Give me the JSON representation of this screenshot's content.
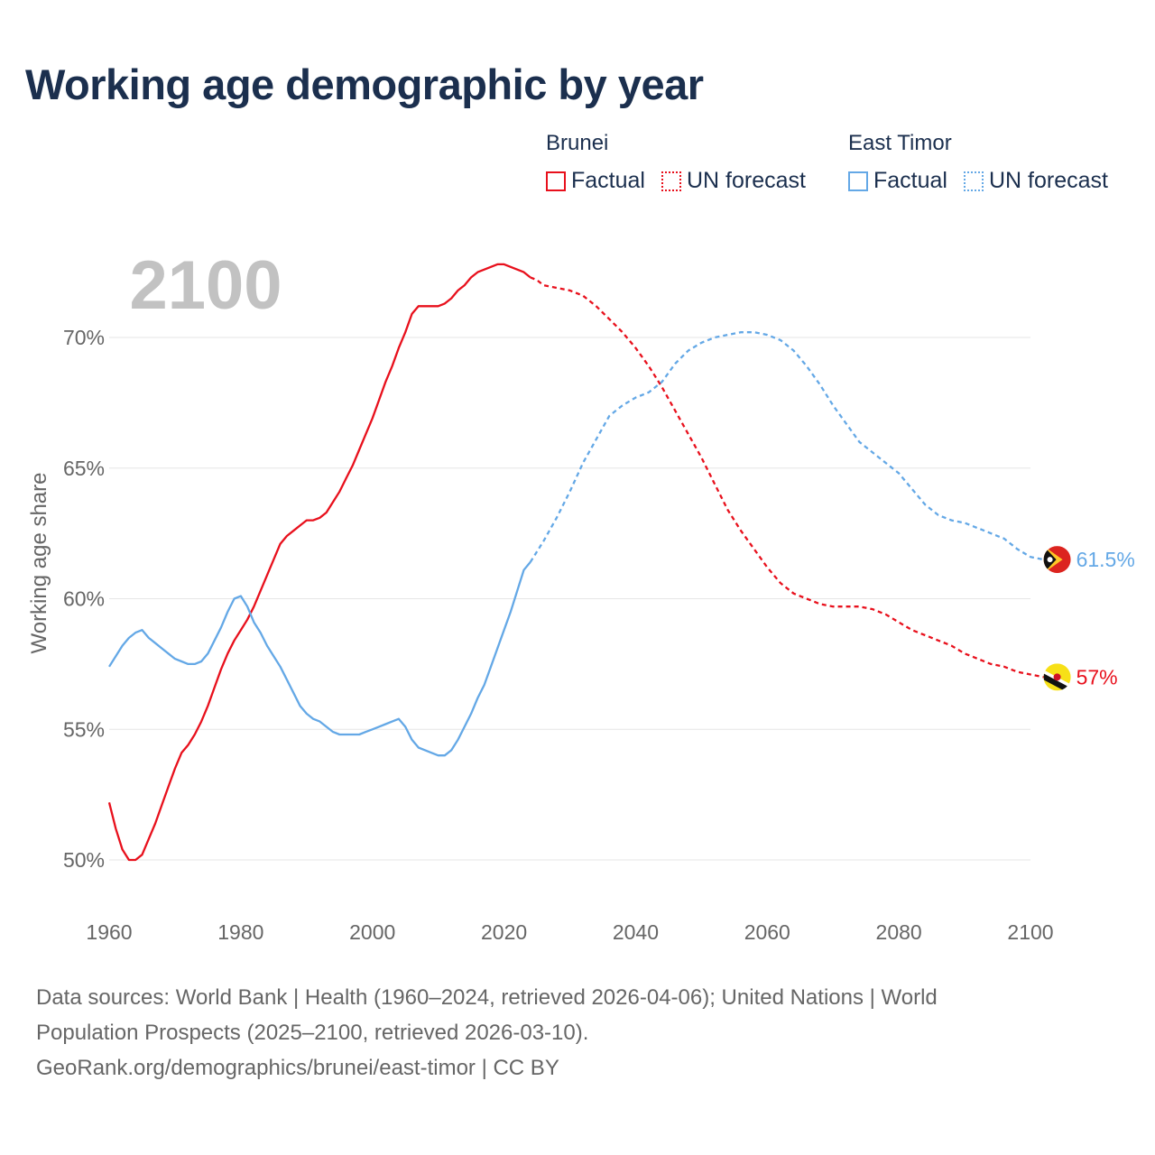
{
  "title": "Working age demographic by year",
  "legend": {
    "groups": [
      {
        "country": "Brunei",
        "factual_label": "Factual",
        "forecast_label": "UN forecast",
        "color": "#e8101c"
      },
      {
        "country": "East Timor",
        "factual_label": "Factual",
        "forecast_label": "UN forecast",
        "color": "#64a8e6"
      }
    ]
  },
  "chart_data": {
    "type": "line",
    "title": "Working age demographic by year",
    "year_watermark": "2100",
    "ylabel": "Working age share",
    "xlabel": "",
    "xlim": [
      1960,
      2100
    ],
    "ylim": [
      50,
      70
    ],
    "x_ticks": [
      "1960",
      "1980",
      "2000",
      "2020",
      "2040",
      "2060",
      "2080",
      "2100"
    ],
    "y_ticks": [
      "50%",
      "55%",
      "60%",
      "65%",
      "70%"
    ],
    "grid": true,
    "series": [
      {
        "name": "Brunei",
        "color": "#e8101c",
        "end_label": "57%",
        "flag_icon": "brunei-flag-icon",
        "factual": [
          [
            1960,
            52.2
          ],
          [
            1961,
            51.2
          ],
          [
            1962,
            50.4
          ],
          [
            1963,
            50.0
          ],
          [
            1964,
            50.0
          ],
          [
            1965,
            50.2
          ],
          [
            1966,
            50.8
          ],
          [
            1967,
            51.4
          ],
          [
            1968,
            52.1
          ],
          [
            1969,
            52.8
          ],
          [
            1970,
            53.5
          ],
          [
            1971,
            54.1
          ],
          [
            1972,
            54.4
          ],
          [
            1973,
            54.8
          ],
          [
            1974,
            55.3
          ],
          [
            1975,
            55.9
          ],
          [
            1976,
            56.6
          ],
          [
            1977,
            57.3
          ],
          [
            1978,
            57.9
          ],
          [
            1979,
            58.4
          ],
          [
            1980,
            58.8
          ],
          [
            1981,
            59.2
          ],
          [
            1982,
            59.7
          ],
          [
            1983,
            60.3
          ],
          [
            1984,
            60.9
          ],
          [
            1985,
            61.5
          ],
          [
            1986,
            62.1
          ],
          [
            1987,
            62.4
          ],
          [
            1988,
            62.6
          ],
          [
            1989,
            62.8
          ],
          [
            1990,
            63.0
          ],
          [
            1991,
            63.0
          ],
          [
            1992,
            63.1
          ],
          [
            1993,
            63.3
          ],
          [
            1994,
            63.7
          ],
          [
            1995,
            64.1
          ],
          [
            1996,
            64.6
          ],
          [
            1997,
            65.1
          ],
          [
            1998,
            65.7
          ],
          [
            1999,
            66.3
          ],
          [
            2000,
            66.9
          ],
          [
            2001,
            67.6
          ],
          [
            2002,
            68.3
          ],
          [
            2003,
            68.9
          ],
          [
            2004,
            69.6
          ],
          [
            2005,
            70.2
          ],
          [
            2006,
            70.9
          ],
          [
            2007,
            71.2
          ],
          [
            2008,
            71.2
          ],
          [
            2009,
            71.2
          ],
          [
            2010,
            71.2
          ],
          [
            2011,
            71.3
          ],
          [
            2012,
            71.5
          ],
          [
            2013,
            71.8
          ],
          [
            2014,
            72.0
          ],
          [
            2015,
            72.3
          ],
          [
            2016,
            72.5
          ],
          [
            2017,
            72.6
          ],
          [
            2018,
            72.7
          ],
          [
            2019,
            72.8
          ],
          [
            2020,
            72.8
          ],
          [
            2021,
            72.7
          ],
          [
            2022,
            72.6
          ],
          [
            2023,
            72.5
          ],
          [
            2024,
            72.3
          ]
        ],
        "forecast": [
          [
            2024,
            72.3
          ],
          [
            2025,
            72.2
          ],
          [
            2026,
            72.0
          ],
          [
            2028,
            71.9
          ],
          [
            2030,
            71.8
          ],
          [
            2032,
            71.6
          ],
          [
            2034,
            71.2
          ],
          [
            2036,
            70.7
          ],
          [
            2038,
            70.2
          ],
          [
            2040,
            69.6
          ],
          [
            2042,
            68.9
          ],
          [
            2044,
            68.1
          ],
          [
            2046,
            67.2
          ],
          [
            2048,
            66.3
          ],
          [
            2050,
            65.4
          ],
          [
            2052,
            64.4
          ],
          [
            2054,
            63.4
          ],
          [
            2056,
            62.6
          ],
          [
            2058,
            61.9
          ],
          [
            2060,
            61.2
          ],
          [
            2062,
            60.6
          ],
          [
            2064,
            60.2
          ],
          [
            2066,
            60.0
          ],
          [
            2068,
            59.8
          ],
          [
            2070,
            59.7
          ],
          [
            2072,
            59.7
          ],
          [
            2074,
            59.7
          ],
          [
            2076,
            59.6
          ],
          [
            2078,
            59.4
          ],
          [
            2080,
            59.1
          ],
          [
            2082,
            58.8
          ],
          [
            2084,
            58.6
          ],
          [
            2086,
            58.4
          ],
          [
            2088,
            58.2
          ],
          [
            2090,
            57.9
          ],
          [
            2092,
            57.7
          ],
          [
            2094,
            57.5
          ],
          [
            2096,
            57.4
          ],
          [
            2098,
            57.2
          ],
          [
            2100,
            57.1
          ],
          [
            2102,
            57.0
          ]
        ]
      },
      {
        "name": "East Timor",
        "color": "#64a8e6",
        "end_label": "61.5%",
        "flag_icon": "east-timor-flag-icon",
        "factual": [
          [
            1960,
            57.4
          ],
          [
            1961,
            57.8
          ],
          [
            1962,
            58.2
          ],
          [
            1963,
            58.5
          ],
          [
            1964,
            58.7
          ],
          [
            1965,
            58.8
          ],
          [
            1966,
            58.5
          ],
          [
            1967,
            58.3
          ],
          [
            1968,
            58.1
          ],
          [
            1969,
            57.9
          ],
          [
            1970,
            57.7
          ],
          [
            1971,
            57.6
          ],
          [
            1972,
            57.5
          ],
          [
            1973,
            57.5
          ],
          [
            1974,
            57.6
          ],
          [
            1975,
            57.9
          ],
          [
            1976,
            58.4
          ],
          [
            1977,
            58.9
          ],
          [
            1978,
            59.5
          ],
          [
            1979,
            60.0
          ],
          [
            1980,
            60.1
          ],
          [
            1981,
            59.7
          ],
          [
            1982,
            59.1
          ],
          [
            1983,
            58.7
          ],
          [
            1984,
            58.2
          ],
          [
            1985,
            57.8
          ],
          [
            1986,
            57.4
          ],
          [
            1987,
            56.9
          ],
          [
            1988,
            56.4
          ],
          [
            1989,
            55.9
          ],
          [
            1990,
            55.6
          ],
          [
            1991,
            55.4
          ],
          [
            1992,
            55.3
          ],
          [
            1993,
            55.1
          ],
          [
            1994,
            54.9
          ],
          [
            1995,
            54.8
          ],
          [
            1996,
            54.8
          ],
          [
            1997,
            54.8
          ],
          [
            1998,
            54.8
          ],
          [
            1999,
            54.9
          ],
          [
            2000,
            55.0
          ],
          [
            2001,
            55.1
          ],
          [
            2002,
            55.2
          ],
          [
            2003,
            55.3
          ],
          [
            2004,
            55.4
          ],
          [
            2005,
            55.1
          ],
          [
            2006,
            54.6
          ],
          [
            2007,
            54.3
          ],
          [
            2008,
            54.2
          ],
          [
            2009,
            54.1
          ],
          [
            2010,
            54.0
          ],
          [
            2011,
            54.0
          ],
          [
            2012,
            54.2
          ],
          [
            2013,
            54.6
          ],
          [
            2014,
            55.1
          ],
          [
            2015,
            55.6
          ],
          [
            2016,
            56.2
          ],
          [
            2017,
            56.7
          ],
          [
            2018,
            57.4
          ],
          [
            2019,
            58.1
          ],
          [
            2020,
            58.8
          ],
          [
            2021,
            59.5
          ],
          [
            2022,
            60.3
          ],
          [
            2023,
            61.1
          ],
          [
            2024,
            61.4
          ]
        ],
        "forecast": [
          [
            2024,
            61.4
          ],
          [
            2026,
            62.2
          ],
          [
            2028,
            63.1
          ],
          [
            2030,
            64.1
          ],
          [
            2032,
            65.2
          ],
          [
            2034,
            66.1
          ],
          [
            2036,
            67.0
          ],
          [
            2038,
            67.4
          ],
          [
            2040,
            67.7
          ],
          [
            2042,
            67.9
          ],
          [
            2044,
            68.3
          ],
          [
            2046,
            69.0
          ],
          [
            2048,
            69.5
          ],
          [
            2050,
            69.8
          ],
          [
            2052,
            70.0
          ],
          [
            2054,
            70.1
          ],
          [
            2056,
            70.2
          ],
          [
            2058,
            70.2
          ],
          [
            2060,
            70.1
          ],
          [
            2062,
            69.9
          ],
          [
            2064,
            69.5
          ],
          [
            2066,
            68.9
          ],
          [
            2068,
            68.2
          ],
          [
            2070,
            67.4
          ],
          [
            2072,
            66.7
          ],
          [
            2074,
            66.0
          ],
          [
            2076,
            65.6
          ],
          [
            2078,
            65.2
          ],
          [
            2080,
            64.8
          ],
          [
            2082,
            64.2
          ],
          [
            2084,
            63.6
          ],
          [
            2086,
            63.2
          ],
          [
            2088,
            63.0
          ],
          [
            2090,
            62.9
          ],
          [
            2092,
            62.7
          ],
          [
            2094,
            62.5
          ],
          [
            2096,
            62.3
          ],
          [
            2098,
            61.9
          ],
          [
            2100,
            61.6
          ],
          [
            2102,
            61.5
          ]
        ]
      }
    ]
  },
  "footer": {
    "line1": "Data sources: World Bank | Health (1960–2024, retrieved 2026-04-06); United Nations | World",
    "line2": "Population Prospects (2025–2100, retrieved 2026-03-10).",
    "line3": "GeoRank.org/demographics/brunei/east-timor | CC BY"
  }
}
